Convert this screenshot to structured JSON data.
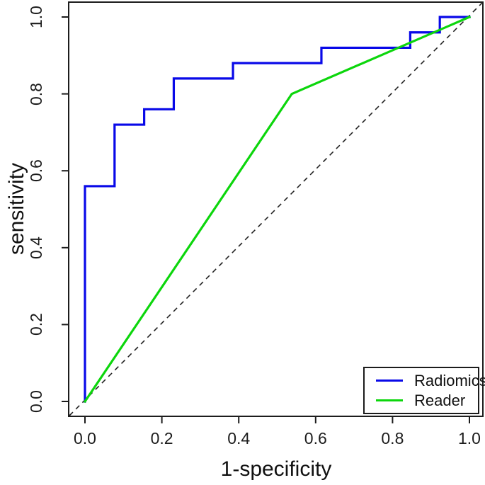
{
  "chart_data": {
    "type": "line",
    "title": "",
    "xlabel": "1-specificity",
    "ylabel": "sensitivity",
    "xlim": [
      0.0,
      1.0
    ],
    "ylim": [
      0.0,
      1.0
    ],
    "grid": false,
    "x_tick_values": [
      0.0,
      0.2,
      0.4,
      0.6,
      0.8,
      1.0
    ],
    "x_tick_labels": [
      "0.0",
      "0.2",
      "0.4",
      "0.6",
      "0.8",
      "1.0"
    ],
    "y_tick_values": [
      0.0,
      0.2,
      0.4,
      0.6,
      0.8,
      1.0
    ],
    "y_tick_labels": [
      "0.0",
      "0.2",
      "0.4",
      "0.6",
      "0.8",
      "1.0"
    ],
    "legend_position": "bottom-right",
    "axis_color": "#1c1c1c",
    "series": [
      {
        "name": "Radiomics",
        "color": "#0909e8",
        "curve_type": "step",
        "points": [
          [
            0.0,
            0.0
          ],
          [
            0.0,
            0.56
          ],
          [
            0.077,
            0.56
          ],
          [
            0.077,
            0.72
          ],
          [
            0.154,
            0.72
          ],
          [
            0.154,
            0.76
          ],
          [
            0.231,
            0.76
          ],
          [
            0.231,
            0.84
          ],
          [
            0.385,
            0.84
          ],
          [
            0.385,
            0.88
          ],
          [
            0.615,
            0.88
          ],
          [
            0.615,
            0.92
          ],
          [
            0.846,
            0.92
          ],
          [
            0.846,
            0.96
          ],
          [
            0.923,
            0.96
          ],
          [
            0.923,
            1.0
          ],
          [
            1.0,
            1.0
          ]
        ]
      },
      {
        "name": "Reader",
        "color": "#0cd60c",
        "curve_type": "line",
        "points": [
          [
            0.0,
            0.0
          ],
          [
            0.538,
            0.8
          ],
          [
            1.0,
            1.0
          ]
        ]
      }
    ],
    "reference_line": {
      "description": "chance diagonal y = x",
      "style": "dashed",
      "color": "#222222",
      "from": [
        0.0,
        0.0
      ],
      "to": [
        1.0,
        1.0
      ]
    }
  }
}
